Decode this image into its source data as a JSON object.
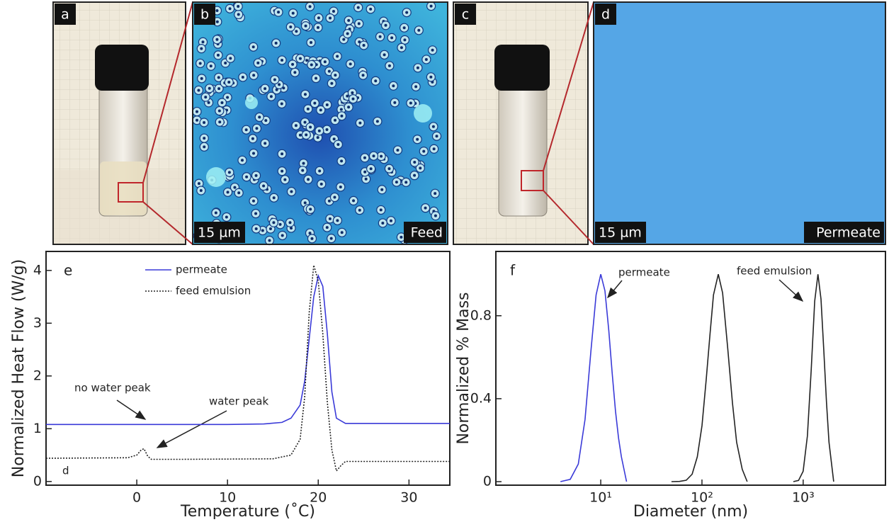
{
  "photo_panels": [
    {
      "letter": "a"
    },
    {
      "letter": "b",
      "scale": "15 µm",
      "caption": "Feed"
    },
    {
      "letter": "c"
    },
    {
      "letter": "d",
      "scale": "15 µm",
      "caption": "Permeate"
    }
  ],
  "chart_data": [
    {
      "type": "line",
      "panel_label": "e",
      "xlabel": "Temperature (˚C)",
      "ylabel": "Normalized Heat Flow (W/g)",
      "xlim": [
        -10,
        34.5
      ],
      "ylim": [
        -0.07,
        4.36
      ],
      "xticks": [
        0,
        10,
        20,
        30
      ],
      "yticks": [
        0,
        1,
        2,
        3,
        4
      ],
      "series": [
        {
          "name": "permeate",
          "color": "#3a3ad8",
          "line_style": "solid",
          "x": [
            -10,
            10,
            14,
            16,
            17,
            18,
            18.5,
            19,
            19.5,
            20,
            20.5,
            21,
            21.5,
            22,
            23,
            34.5
          ],
          "values": [
            1.08,
            1.08,
            1.09,
            1.12,
            1.2,
            1.45,
            1.9,
            2.7,
            3.5,
            3.9,
            3.7,
            2.8,
            1.7,
            1.2,
            1.1,
            1.1
          ]
        },
        {
          "name": "feed emulsion",
          "color": "#222222",
          "line_style": "dotted",
          "x": [
            -10,
            -1,
            0,
            0.5,
            0.8,
            1.2,
            1.6,
            5,
            15,
            17,
            18,
            18.5,
            19,
            19.5,
            20,
            20.5,
            21,
            21.5,
            22,
            22.5,
            23,
            34.5
          ],
          "values": [
            0.44,
            0.45,
            0.5,
            0.6,
            0.62,
            0.48,
            0.42,
            0.42,
            0.43,
            0.5,
            0.8,
            1.6,
            3.2,
            4.1,
            3.8,
            2.8,
            1.5,
            0.6,
            0.2,
            0.3,
            0.38,
            0.38
          ]
        }
      ],
      "annotations": [
        "no water peak",
        "water peak",
        "d"
      ]
    },
    {
      "type": "line",
      "panel_label": "f",
      "xlabel": "Diameter (nm)",
      "ylabel": "Normalized % Mass",
      "log_x": true,
      "xlim": [
        0.92,
        6500
      ],
      "ylim": [
        -0.017,
        1.11
      ],
      "xticks": [
        {
          "value": 10,
          "label": "10¹"
        },
        {
          "value": 100,
          "label": "10²"
        },
        {
          "value": 1000,
          "label": "10³"
        }
      ],
      "yticks": [
        0,
        0.4,
        0.8
      ],
      "series": [
        {
          "name": "permeate",
          "color": "#3a3ad8",
          "line_style": "solid",
          "x": [
            4,
            5,
            6,
            7,
            8,
            9,
            10,
            11,
            12,
            13,
            14,
            15,
            16,
            18
          ],
          "values": [
            0,
            0.011,
            0.085,
            0.3,
            0.63,
            0.9,
            1.0,
            0.92,
            0.73,
            0.52,
            0.34,
            0.21,
            0.12,
            0
          ]
        },
        {
          "name": "feed emulsion",
          "color": "#222222",
          "line_style": "solid",
          "x": [
            50,
            60,
            70,
            80,
            90,
            100,
            110,
            120,
            130,
            145,
            160,
            180,
            200,
            220,
            250,
            280,
            null,
            800,
            900,
            1000,
            1100,
            1200,
            1300,
            1400,
            1500,
            1600,
            1700,
            1800,
            2000
          ],
          "values": [
            0,
            0.001,
            0.007,
            0.036,
            0.12,
            0.27,
            0.49,
            0.71,
            0.9,
            1.0,
            0.91,
            0.64,
            0.38,
            0.19,
            0.06,
            0,
            null,
            0,
            0.006,
            0.05,
            0.22,
            0.54,
            0.87,
            1.0,
            0.88,
            0.63,
            0.38,
            0.19,
            0
          ]
        }
      ]
    }
  ]
}
